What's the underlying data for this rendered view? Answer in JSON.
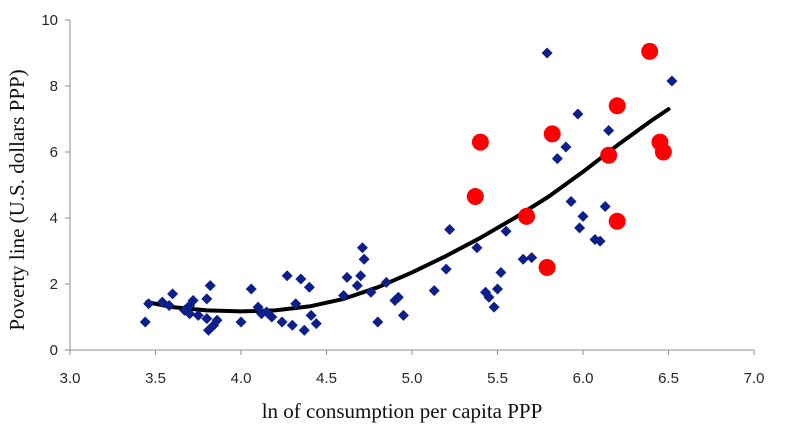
{
  "chart_data": {
    "type": "scatter",
    "title": "",
    "xlabel": "ln of consumption per capita PPP",
    "ylabel": "Poverty line (U.S. dollars PPP)",
    "xlim": [
      3.0,
      7.0
    ],
    "ylim": [
      0,
      10
    ],
    "xticks": [
      "3.0",
      "3.5",
      "4.0",
      "4.5",
      "5.0",
      "5.5",
      "6.0",
      "6.5",
      "7.0"
    ],
    "yticks": [
      "0",
      "2",
      "4",
      "6",
      "8",
      "10"
    ],
    "grid": false,
    "legend": "none",
    "colors": {
      "diamonds": "#0d1f8a",
      "circles": "#ff0000",
      "curve": "#000000"
    },
    "series": [
      {
        "marker": "diamond",
        "color": "#0d1f8a",
        "points": [
          [
            3.44,
            0.85
          ],
          [
            3.46,
            1.4
          ],
          [
            3.54,
            1.45
          ],
          [
            3.58,
            1.35
          ],
          [
            3.6,
            1.7
          ],
          [
            3.67,
            1.2
          ],
          [
            3.7,
            1.35
          ],
          [
            3.7,
            1.1
          ],
          [
            3.72,
            1.5
          ],
          [
            3.75,
            1.05
          ],
          [
            3.8,
            0.95
          ],
          [
            3.8,
            1.55
          ],
          [
            3.81,
            0.6
          ],
          [
            3.82,
            1.95
          ],
          [
            3.84,
            0.75
          ],
          [
            3.86,
            0.9
          ],
          [
            4.0,
            0.85
          ],
          [
            4.06,
            1.85
          ],
          [
            4.1,
            1.3
          ],
          [
            4.12,
            1.1
          ],
          [
            4.15,
            1.15
          ],
          [
            4.18,
            1.0
          ],
          [
            4.24,
            0.85
          ],
          [
            4.27,
            2.25
          ],
          [
            4.3,
            0.75
          ],
          [
            4.32,
            1.4
          ],
          [
            4.35,
            2.15
          ],
          [
            4.37,
            0.6
          ],
          [
            4.4,
            1.9
          ],
          [
            4.41,
            1.05
          ],
          [
            4.44,
            0.8
          ],
          [
            4.6,
            1.65
          ],
          [
            4.62,
            2.2
          ],
          [
            4.68,
            1.95
          ],
          [
            4.7,
            2.25
          ],
          [
            4.71,
            3.1
          ],
          [
            4.72,
            2.75
          ],
          [
            4.76,
            1.75
          ],
          [
            4.8,
            0.85
          ],
          [
            4.85,
            2.05
          ],
          [
            4.9,
            1.5
          ],
          [
            4.92,
            1.6
          ],
          [
            4.95,
            1.05
          ],
          [
            5.13,
            1.8
          ],
          [
            5.2,
            2.45
          ],
          [
            5.22,
            3.65
          ],
          [
            5.38,
            3.1
          ],
          [
            5.43,
            1.75
          ],
          [
            5.45,
            1.6
          ],
          [
            5.48,
            1.3
          ],
          [
            5.5,
            1.85
          ],
          [
            5.52,
            2.35
          ],
          [
            5.55,
            3.6
          ],
          [
            5.65,
            2.75
          ],
          [
            5.7,
            2.8
          ],
          [
            5.79,
            9.0
          ],
          [
            5.85,
            5.8
          ],
          [
            5.9,
            6.15
          ],
          [
            5.93,
            4.5
          ],
          [
            5.97,
            7.15
          ],
          [
            5.98,
            3.7
          ],
          [
            6.0,
            4.05
          ],
          [
            6.07,
            3.35
          ],
          [
            6.1,
            3.3
          ],
          [
            6.13,
            4.35
          ],
          [
            6.15,
            6.65
          ],
          [
            6.52,
            8.15
          ]
        ]
      },
      {
        "marker": "circle",
        "color": "#ff0000",
        "points": [
          [
            5.37,
            4.65
          ],
          [
            5.4,
            6.3
          ],
          [
            5.67,
            4.05
          ],
          [
            5.79,
            2.5
          ],
          [
            5.82,
            6.55
          ],
          [
            6.15,
            5.9
          ],
          [
            6.2,
            3.9
          ],
          [
            6.2,
            7.4
          ],
          [
            6.39,
            9.05
          ],
          [
            6.45,
            6.3
          ],
          [
            6.47,
            6.0
          ]
        ]
      },
      {
        "marker": "curve",
        "color": "#000000",
        "fit": "quadratic",
        "points": [
          [
            3.45,
            1.45
          ],
          [
            3.6,
            1.3
          ],
          [
            3.8,
            1.2
          ],
          [
            4.0,
            1.17
          ],
          [
            4.2,
            1.2
          ],
          [
            4.4,
            1.32
          ],
          [
            4.6,
            1.55
          ],
          [
            4.8,
            1.9
          ],
          [
            5.0,
            2.35
          ],
          [
            5.2,
            2.85
          ],
          [
            5.4,
            3.4
          ],
          [
            5.6,
            4.0
          ],
          [
            5.8,
            4.65
          ],
          [
            6.0,
            5.4
          ],
          [
            6.2,
            6.2
          ],
          [
            6.4,
            6.95
          ],
          [
            6.5,
            7.3
          ]
        ]
      }
    ]
  }
}
